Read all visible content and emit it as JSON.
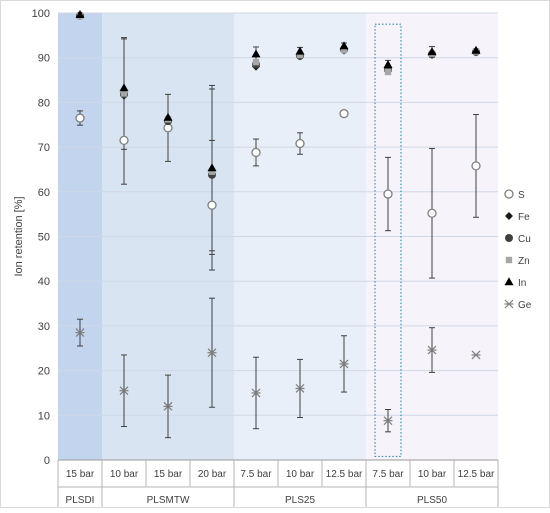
{
  "chart_data": {
    "type": "scatter",
    "ylabel": "Ion retention [%]",
    "ylim": [
      0,
      100
    ],
    "yticks": [
      0,
      10,
      20,
      30,
      40,
      50,
      60,
      70,
      80,
      90,
      100
    ],
    "grid": true,
    "legend_position": "right",
    "groups": [
      {
        "name": "PLSDI",
        "color": "#c3d5ee",
        "categories": [
          "15 bar"
        ]
      },
      {
        "name": "PLSMTW",
        "color": "#d9e4f3",
        "categories": [
          "10 bar",
          "15 bar",
          "20 bar"
        ]
      },
      {
        "name": "PLS25",
        "color": "#e9eff9",
        "categories": [
          "7.5 bar",
          "10 bar",
          "12.5 bar"
        ]
      },
      {
        "name": "PLS50",
        "color": "#f6f3fb",
        "categories": [
          "7.5 bar",
          "10 bar",
          "12.5 bar"
        ]
      }
    ],
    "series": [
      {
        "name": "S",
        "marker": "open-circle",
        "color": "#7f7f7f",
        "values": [
          76.5,
          71.5,
          74.3,
          57.0,
          68.8,
          70.8,
          77.5,
          59.5,
          55.2,
          65.8
        ],
        "error": [
          1.6,
          9.8,
          7.5,
          14.5,
          3.0,
          2.4,
          0.4,
          8.2,
          14.5,
          11.5
        ]
      },
      {
        "name": "Fe",
        "marker": "diamond",
        "color": "#1a1a1a",
        "values": [
          99.5,
          81.5,
          76.0,
          64.0,
          88.0,
          90.3,
          91.6,
          87.0,
          90.6,
          91.2
        ],
        "error": [
          0,
          0,
          0,
          0,
          0,
          0,
          0,
          0,
          0,
          0
        ]
      },
      {
        "name": "Cu",
        "marker": "filled-circle",
        "color": "#404040",
        "values": [
          99.4,
          81.8,
          75.8,
          63.8,
          88.5,
          90.4,
          91.8,
          87.5,
          90.8,
          91.3
        ],
        "error": [
          0,
          0,
          0,
          0,
          0,
          0,
          0,
          0,
          0,
          0
        ]
      },
      {
        "name": "Zn",
        "marker": "square",
        "color": "#a6a6a6",
        "values": [
          99.3,
          82.0,
          76.2,
          64.5,
          89.0,
          90.6,
          91.7,
          86.8,
          90.9,
          91.4
        ],
        "error": [
          0,
          12.5,
          0,
          18.5,
          0,
          0,
          0,
          0,
          0,
          0
        ]
      },
      {
        "name": "In",
        "marker": "triangle",
        "color": "#000000",
        "values": [
          99.6,
          83.2,
          76.6,
          65.3,
          90.8,
          91.4,
          92.6,
          88.4,
          91.3,
          91.6
        ],
        "error": [
          0,
          11.0,
          0,
          18.5,
          1.6,
          0.9,
          0.7,
          1.0,
          1.2,
          0.4
        ]
      },
      {
        "name": "Ge",
        "marker": "asterisk",
        "color": "#7f7f7f",
        "values": [
          28.5,
          15.5,
          12.0,
          24.0,
          15.0,
          16.0,
          21.5,
          8.8,
          24.6,
          23.5
        ],
        "error": [
          3.0,
          8.0,
          7.0,
          12.2,
          8.0,
          6.5,
          6.3,
          2.5,
          5.0,
          0
        ]
      }
    ]
  },
  "colors": {
    "plot_border": "#b4b4b4",
    "grid": "#d0d8e6",
    "error_bar": "#404040",
    "text": "#404040",
    "highlight_box": "#3a8fb7"
  }
}
